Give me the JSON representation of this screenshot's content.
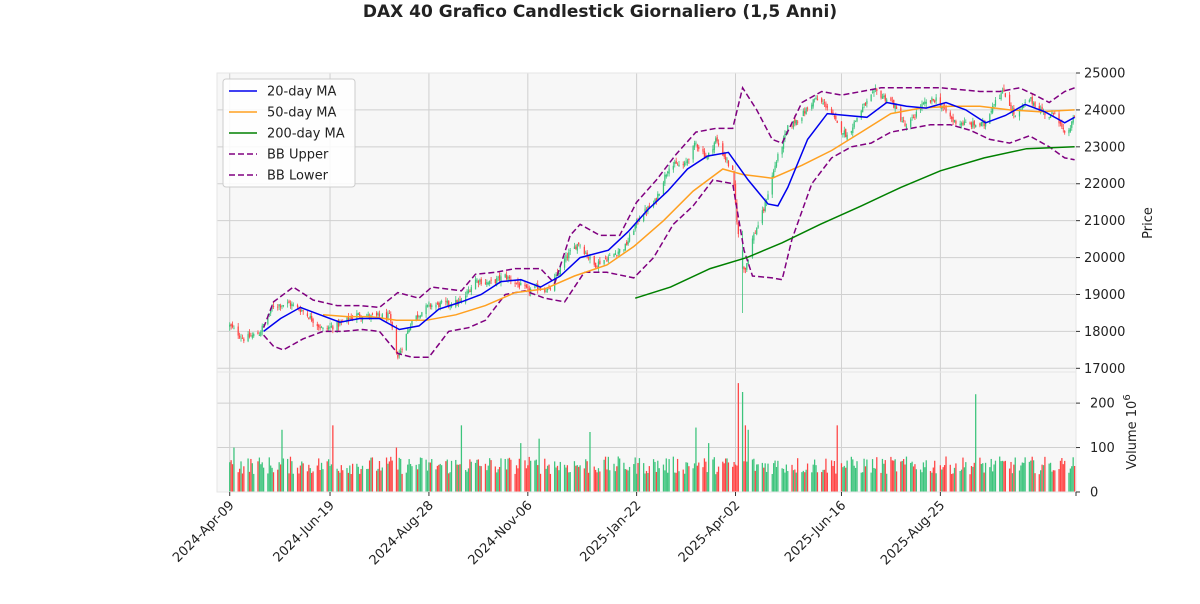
{
  "colors": {
    "ma20": "#0000ee",
    "ma50": "#ffa020",
    "ma200": "#008000",
    "bb": "#800080",
    "up": "#3cc47c",
    "down": "#ff4444",
    "panel_bg": "#f7f7f7",
    "grid": "#d0d0d0"
  },
  "chart_data": {
    "type": "candlestick",
    "title": "DAX 40 Grafico Candlestick Giornaliero (1,5 Anni)",
    "price_axis": {
      "label": "Price",
      "ticks": [
        17000,
        18000,
        19000,
        20000,
        21000,
        22000,
        23000,
        24000,
        25000
      ],
      "tick_labels": [
        "17000",
        "18000",
        "19000",
        "20000",
        "21000",
        "22000",
        "23000",
        "24000",
        "25000"
      ],
      "range": [
        16900,
        25000
      ]
    },
    "volume_axis": {
      "label": "Volume",
      "exponent_label": "10",
      "exponent": "6",
      "ticks": [
        0,
        100,
        200
      ],
      "tick_labels": [
        "0",
        "100",
        "200"
      ],
      "range": [
        0,
        270
      ]
    },
    "x_axis": {
      "range": [
        "2024-03-31",
        "2025-11-29"
      ],
      "ticks": [
        "2024-04-09",
        "2024-06-19",
        "2024-08-28",
        "2024-11-06",
        "2025-01-22",
        "2025-04-02",
        "2025-06-16",
        "2025-08-25"
      ],
      "tick_labels": [
        "2024-Apr-09",
        "2024-Jun-19",
        "2024-Aug-28",
        "2024-Nov-06",
        "2025-Jan-22",
        "2025-Apr-02",
        "2025-Jun-16",
        "2025-Aug-25"
      ]
    },
    "grid": true,
    "legend": {
      "placement": "top-left",
      "entries": [
        "20-day MA",
        "50-day MA",
        "200-day MA",
        "BB Upper",
        "BB Lower"
      ]
    },
    "close_anchors": [
      [
        "2024-04-09",
        18150
      ],
      [
        "2024-04-19",
        17800
      ],
      [
        "2024-04-30",
        17950
      ],
      [
        "2024-05-10",
        18700
      ],
      [
        "2024-05-21",
        18750
      ],
      [
        "2024-05-31",
        18550
      ],
      [
        "2024-06-14",
        18050
      ],
      [
        "2024-06-26",
        18200
      ],
      [
        "2024-07-08",
        18450
      ],
      [
        "2024-07-18",
        18400
      ],
      [
        "2024-07-31",
        18400
      ],
      [
        "2024-08-06",
        17300
      ],
      [
        "2024-08-16",
        18300
      ],
      [
        "2024-08-28",
        18700
      ],
      [
        "2024-09-10",
        18750
      ],
      [
        "2024-09-20",
        18800
      ],
      [
        "2024-09-30",
        19400
      ],
      [
        "2024-10-10",
        19300
      ],
      [
        "2024-10-21",
        19500
      ],
      [
        "2024-11-06",
        19100
      ],
      [
        "2024-11-14",
        19200
      ],
      [
        "2024-11-21",
        19100
      ],
      [
        "2024-12-03",
        20000
      ],
      [
        "2024-12-12",
        20400
      ],
      [
        "2024-12-23",
        19800
      ],
      [
        "2025-01-02",
        20000
      ],
      [
        "2025-01-14",
        20300
      ],
      [
        "2025-01-24",
        21100
      ],
      [
        "2025-02-04",
        21500
      ],
      [
        "2025-02-14",
        22500
      ],
      [
        "2025-02-25",
        22500
      ],
      [
        "2025-03-05",
        23100
      ],
      [
        "2025-03-13",
        22700
      ],
      [
        "2025-03-19",
        23200
      ],
      [
        "2025-03-31",
        22300
      ],
      [
        "2025-04-04",
        20600
      ],
      [
        "2025-04-07",
        19800
      ],
      [
        "2025-04-09",
        19700
      ],
      [
        "2025-04-14",
        20500
      ],
      [
        "2025-04-22",
        21300
      ],
      [
        "2025-04-30",
        22500
      ],
      [
        "2025-05-09",
        23500
      ],
      [
        "2025-05-20",
        23900
      ],
      [
        "2025-05-28",
        24300
      ],
      [
        "2025-06-06",
        24100
      ],
      [
        "2025-06-13",
        23600
      ],
      [
        "2025-06-20",
        23300
      ],
      [
        "2025-06-30",
        24000
      ],
      [
        "2025-07-10",
        24500
      ],
      [
        "2025-07-22",
        24200
      ],
      [
        "2025-08-01",
        23500
      ],
      [
        "2025-08-11",
        24100
      ],
      [
        "2025-08-22",
        24300
      ],
      [
        "2025-09-03",
        23700
      ],
      [
        "2025-09-15",
        23600
      ],
      [
        "2025-09-25",
        23600
      ],
      [
        "2025-10-03",
        24300
      ],
      [
        "2025-10-09",
        24500
      ],
      [
        "2025-10-17",
        23800
      ],
      [
        "2025-10-27",
        24300
      ],
      [
        "2025-11-04",
        24000
      ],
      [
        "2025-11-11",
        23800
      ],
      [
        "2025-11-14",
        24000
      ],
      [
        "2025-11-21",
        23300
      ],
      [
        "2025-11-26",
        23600
      ],
      [
        "2025-11-28",
        23850
      ]
    ],
    "ma20": [
      [
        "2024-05-03",
        18000
      ],
      [
        "2024-05-15",
        18350
      ],
      [
        "2024-05-29",
        18650
      ],
      [
        "2024-06-12",
        18450
      ],
      [
        "2024-06-26",
        18250
      ],
      [
        "2024-07-10",
        18350
      ],
      [
        "2024-07-24",
        18350
      ],
      [
        "2024-08-07",
        18050
      ],
      [
        "2024-08-21",
        18150
      ],
      [
        "2024-09-04",
        18600
      ],
      [
        "2024-09-20",
        18800
      ],
      [
        "2024-10-04",
        19000
      ],
      [
        "2024-10-18",
        19350
      ],
      [
        "2024-11-01",
        19400
      ],
      [
        "2024-11-15",
        19200
      ],
      [
        "2024-11-29",
        19500
      ],
      [
        "2024-12-13",
        20000
      ],
      [
        "2025-01-02",
        20200
      ],
      [
        "2025-01-16",
        20700
      ],
      [
        "2025-01-30",
        21300
      ],
      [
        "2025-02-13",
        21800
      ],
      [
        "2025-02-27",
        22400
      ],
      [
        "2025-03-13",
        22750
      ],
      [
        "2025-03-28",
        22850
      ],
      [
        "2025-04-11",
        22100
      ],
      [
        "2025-04-25",
        21450
      ],
      [
        "2025-05-02",
        21400
      ],
      [
        "2025-05-09",
        21900
      ],
      [
        "2025-05-23",
        23200
      ],
      [
        "2025-06-06",
        23900
      ],
      [
        "2025-06-20",
        23850
      ],
      [
        "2025-07-04",
        23800
      ],
      [
        "2025-07-18",
        24200
      ],
      [
        "2025-08-01",
        24100
      ],
      [
        "2025-08-15",
        24050
      ],
      [
        "2025-08-29",
        24200
      ],
      [
        "2025-09-12",
        24000
      ],
      [
        "2025-09-26",
        23650
      ],
      [
        "2025-10-10",
        23850
      ],
      [
        "2025-10-24",
        24150
      ],
      [
        "2025-11-07",
        23950
      ],
      [
        "2025-11-21",
        23650
      ],
      [
        "2025-11-28",
        23800
      ]
    ],
    "ma50": [
      [
        "2024-06-14",
        18450
      ],
      [
        "2024-07-01",
        18400
      ],
      [
        "2024-07-18",
        18400
      ],
      [
        "2024-08-05",
        18300
      ],
      [
        "2024-08-26",
        18300
      ],
      [
        "2024-09-16",
        18450
      ],
      [
        "2024-10-07",
        18700
      ],
      [
        "2024-10-28",
        19050
      ],
      [
        "2024-11-18",
        19150
      ],
      [
        "2024-12-09",
        19500
      ],
      [
        "2025-01-01",
        19800
      ],
      [
        "2025-01-20",
        20300
      ],
      [
        "2025-02-10",
        21000
      ],
      [
        "2025-03-03",
        21800
      ],
      [
        "2025-03-24",
        22400
      ],
      [
        "2025-04-07",
        22250
      ],
      [
        "2025-04-28",
        22150
      ],
      [
        "2025-05-19",
        22500
      ],
      [
        "2025-06-09",
        22900
      ],
      [
        "2025-06-30",
        23400
      ],
      [
        "2025-07-21",
        23900
      ],
      [
        "2025-08-11",
        24050
      ],
      [
        "2025-09-01",
        24100
      ],
      [
        "2025-09-22",
        24100
      ],
      [
        "2025-10-13",
        24000
      ],
      [
        "2025-11-03",
        23950
      ],
      [
        "2025-11-28",
        24000
      ]
    ],
    "ma200": [
      [
        "2025-01-21",
        18900
      ],
      [
        "2025-02-15",
        19200
      ],
      [
        "2025-03-15",
        19700
      ],
      [
        "2025-04-10",
        20000
      ],
      [
        "2025-05-05",
        20400
      ],
      [
        "2025-06-01",
        20900
      ],
      [
        "2025-06-30",
        21400
      ],
      [
        "2025-07-28",
        21900
      ],
      [
        "2025-08-25",
        22350
      ],
      [
        "2025-09-25",
        22700
      ],
      [
        "2025-10-25",
        22950
      ],
      [
        "2025-11-28",
        23000
      ]
    ],
    "bb_upper": [
      [
        "2024-05-03",
        18100
      ],
      [
        "2024-05-10",
        18800
      ],
      [
        "2024-05-24",
        19200
      ],
      [
        "2024-06-07",
        18850
      ],
      [
        "2024-06-24",
        18700
      ],
      [
        "2024-07-10",
        18700
      ],
      [
        "2024-07-24",
        18650
      ],
      [
        "2024-08-06",
        19050
      ],
      [
        "2024-08-21",
        18900
      ],
      [
        "2024-08-30",
        19200
      ],
      [
        "2024-09-20",
        19100
      ],
      [
        "2024-09-30",
        19550
      ],
      [
        "2024-10-14",
        19600
      ],
      [
        "2024-10-28",
        19700
      ],
      [
        "2024-11-15",
        19700
      ],
      [
        "2024-11-25",
        19300
      ],
      [
        "2024-12-06",
        20600
      ],
      [
        "2024-12-13",
        20900
      ],
      [
        "2024-12-27",
        20600
      ],
      [
        "2025-01-10",
        20600
      ],
      [
        "2025-01-22",
        21500
      ],
      [
        "2025-02-05",
        22100
      ],
      [
        "2025-02-19",
        22800
      ],
      [
        "2025-03-05",
        23400
      ],
      [
        "2025-03-19",
        23500
      ],
      [
        "2025-03-31",
        23500
      ],
      [
        "2025-04-07",
        24600
      ],
      [
        "2025-04-17",
        24000
      ],
      [
        "2025-04-28",
        23200
      ],
      [
        "2025-05-05",
        23100
      ],
      [
        "2025-05-19",
        24200
      ],
      [
        "2025-06-02",
        24500
      ],
      [
        "2025-06-16",
        24400
      ],
      [
        "2025-06-30",
        24500
      ],
      [
        "2025-07-14",
        24600
      ],
      [
        "2025-07-28",
        24600
      ],
      [
        "2025-08-11",
        24600
      ],
      [
        "2025-08-25",
        24600
      ],
      [
        "2025-09-08",
        24550
      ],
      [
        "2025-09-22",
        24500
      ],
      [
        "2025-10-06",
        24500
      ],
      [
        "2025-10-20",
        24600
      ],
      [
        "2025-10-31",
        24400
      ],
      [
        "2025-11-10",
        24200
      ],
      [
        "2025-11-21",
        24500
      ],
      [
        "2025-11-28",
        24600
      ]
    ],
    "bb_lower": [
      [
        "2024-05-03",
        17900
      ],
      [
        "2024-05-10",
        17600
      ],
      [
        "2024-05-17",
        17500
      ],
      [
        "2024-05-31",
        17800
      ],
      [
        "2024-06-14",
        18000
      ],
      [
        "2024-06-28",
        18000
      ],
      [
        "2024-07-12",
        18050
      ],
      [
        "2024-07-24",
        18000
      ],
      [
        "2024-08-06",
        17400
      ],
      [
        "2024-08-16",
        17300
      ],
      [
        "2024-08-28",
        17300
      ],
      [
        "2024-09-11",
        18000
      ],
      [
        "2024-09-25",
        18100
      ],
      [
        "2024-10-07",
        18300
      ],
      [
        "2024-10-21",
        19000
      ],
      [
        "2024-11-04",
        19100
      ],
      [
        "2024-11-18",
        18900
      ],
      [
        "2024-12-02",
        18800
      ],
      [
        "2024-12-16",
        19600
      ],
      [
        "2025-01-01",
        19600
      ],
      [
        "2025-01-20",
        19450
      ],
      [
        "2025-02-03",
        20000
      ],
      [
        "2025-02-17",
        20900
      ],
      [
        "2025-03-03",
        21400
      ],
      [
        "2025-03-17",
        22100
      ],
      [
        "2025-03-31",
        22000
      ],
      [
        "2025-04-08",
        20200
      ],
      [
        "2025-04-14",
        19500
      ],
      [
        "2025-04-28",
        19450
      ],
      [
        "2025-05-05",
        19400
      ],
      [
        "2025-05-12",
        20500
      ],
      [
        "2025-05-26",
        22000
      ],
      [
        "2025-06-09",
        22700
      ],
      [
        "2025-06-23",
        23000
      ],
      [
        "2025-07-07",
        23100
      ],
      [
        "2025-07-21",
        23400
      ],
      [
        "2025-08-04",
        23500
      ],
      [
        "2025-08-18",
        23600
      ],
      [
        "2025-09-01",
        23600
      ],
      [
        "2025-09-15",
        23450
      ],
      [
        "2025-09-29",
        23200
      ],
      [
        "2025-10-13",
        23100
      ],
      [
        "2025-10-27",
        23300
      ],
      [
        "2025-11-10",
        23000
      ],
      [
        "2025-11-21",
        22700
      ],
      [
        "2025-11-28",
        22650
      ]
    ],
    "volume": {
      "baseline": 60,
      "spikes": [
        [
          "2024-04-12",
          100
        ],
        [
          "2024-05-16",
          140
        ],
        [
          "2024-06-21",
          150
        ],
        [
          "2024-08-05",
          100
        ],
        [
          "2024-09-20",
          150
        ],
        [
          "2024-11-01",
          110
        ],
        [
          "2024-11-14",
          120
        ],
        [
          "2024-12-20",
          135
        ],
        [
          "2025-03-05",
          145
        ],
        [
          "2025-03-14",
          110
        ],
        [
          "2025-04-04",
          245
        ],
        [
          "2025-04-07",
          225
        ],
        [
          "2025-04-09",
          150
        ],
        [
          "2025-04-11",
          140
        ],
        [
          "2025-06-13",
          150
        ],
        [
          "2025-09-19",
          220
        ],
        [
          "2025-11-21",
          70
        ]
      ]
    }
  }
}
